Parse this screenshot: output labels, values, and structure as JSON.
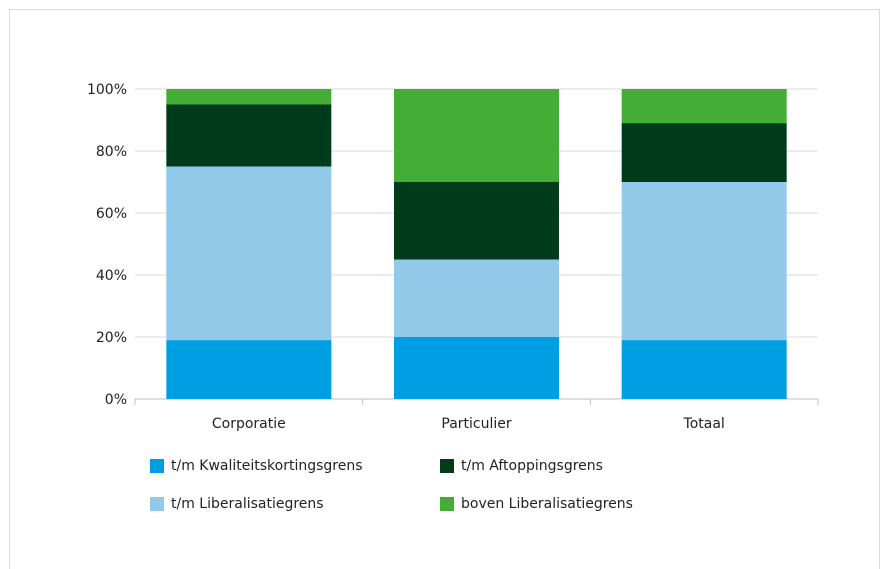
{
  "chart_data": {
    "type": "bar",
    "stacked": true,
    "categories": [
      "Corporatie",
      "Particulier",
      "Totaal"
    ],
    "series": [
      {
        "name": "t/m Kwaliteitskortingsgrens",
        "color": "#009fe3",
        "values": [
          19,
          20,
          19
        ]
      },
      {
        "name": "t/m Liberalisatiegrens",
        "color": "#93c9e8",
        "values": [
          56,
          25,
          51
        ]
      },
      {
        "name": "t/m Aftoppingsgrens",
        "color": "#003c1b",
        "values": [
          20,
          25,
          19
        ]
      },
      {
        "name": "boven Liberalisatiegrens",
        "color": "#44ad35",
        "values": [
          5,
          30,
          11
        ]
      }
    ],
    "yticks": [
      "0%",
      "20%",
      "40%",
      "60%",
      "80%",
      "100%"
    ],
    "ylim": [
      0,
      100
    ],
    "grid": true,
    "legend_position": "bottom"
  }
}
